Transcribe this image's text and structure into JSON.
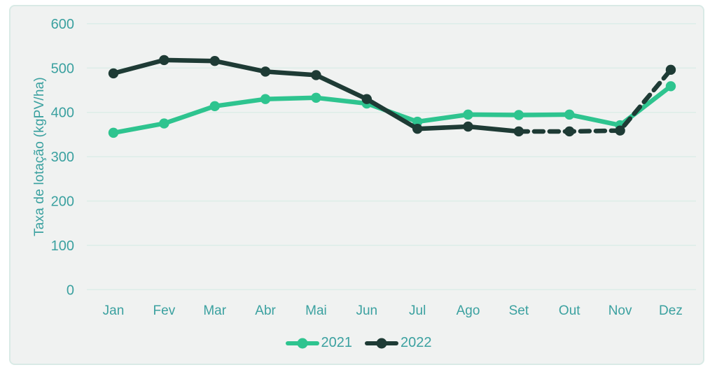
{
  "chart_data": {
    "type": "line",
    "title": "",
    "xlabel": "",
    "ylabel": "Taxa de lotação (kgPV/ha)",
    "categories": [
      "Jan",
      "Fev",
      "Mar",
      "Abr",
      "Mai",
      "Jun",
      "Jul",
      "Ago",
      "Set",
      "Out",
      "Nov",
      "Dez"
    ],
    "yticks": [
      0,
      100,
      200,
      300,
      400,
      500,
      600
    ],
    "ylim": [
      0,
      600
    ],
    "grid": "horizontal",
    "legend_position": "bottom-center",
    "series": [
      {
        "name": "2021",
        "color": "#2ec48f",
        "line_style": "solid",
        "dashed_from_index": null,
        "values": [
          354,
          375,
          414,
          430,
          433,
          420,
          379,
          395,
          394,
          395,
          371,
          459
        ]
      },
      {
        "name": "2022",
        "color": "#1e3b35",
        "line_style": "solid-then-dashed",
        "dashed_from_index": 8,
        "values": [
          488,
          518,
          516,
          492,
          484,
          430,
          363,
          368,
          357,
          357,
          359,
          496
        ]
      }
    ]
  },
  "colors": {
    "page_background": "#ffffff",
    "panel_background": "#f0f2f1",
    "panel_border": "#d9eae6",
    "gridline": "#dcede8",
    "axis_text": "#3ba1a0",
    "series_2021": "#2ec48f",
    "series_2022": "#1e3b35"
  }
}
